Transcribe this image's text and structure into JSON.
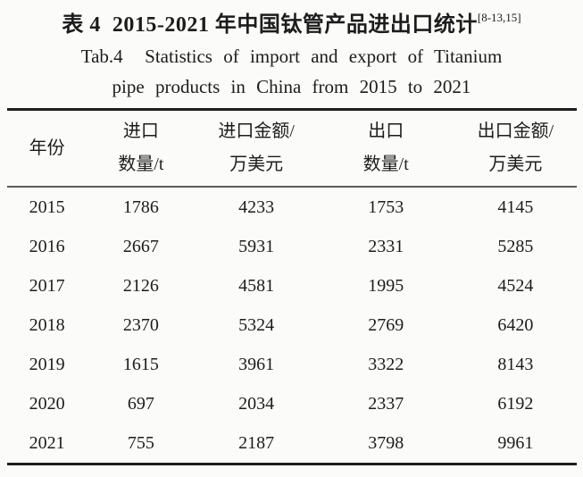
{
  "title": {
    "zh": "表 4  2015-2021 年中国钛管产品进出口统计",
    "citation": "[8-13,15]",
    "en_line1": "Tab.4  Statistics of import and export of Titanium",
    "en_line2": "pipe products in China from 2015 to 2021"
  },
  "table": {
    "columns": [
      {
        "line1": "年份",
        "line2": ""
      },
      {
        "line1": "进口",
        "line2": "数量/t"
      },
      {
        "line1": "进口金额/",
        "line2": "万美元"
      },
      {
        "line1": "出口",
        "line2": "数量/t"
      },
      {
        "line1": "出口金额/",
        "line2": "万美元"
      }
    ],
    "rows": [
      [
        "2015",
        "1786",
        "4233",
        "1753",
        "4145"
      ],
      [
        "2016",
        "2667",
        "5931",
        "2331",
        "5285"
      ],
      [
        "2017",
        "2126",
        "4581",
        "1995",
        "4524"
      ],
      [
        "2018",
        "2370",
        "5324",
        "2769",
        "6420"
      ],
      [
        "2019",
        "1615",
        "3961",
        "3322",
        "8143"
      ],
      [
        "2020",
        "697",
        "2034",
        "2337",
        "6192"
      ],
      [
        "2021",
        "755",
        "2187",
        "3798",
        "9961"
      ]
    ]
  },
  "colors": {
    "background": "#fbfbf9",
    "text": "#1c1c1c",
    "thick_rule": "#1e1e1e",
    "thin_rule": "#5a5a5a"
  }
}
